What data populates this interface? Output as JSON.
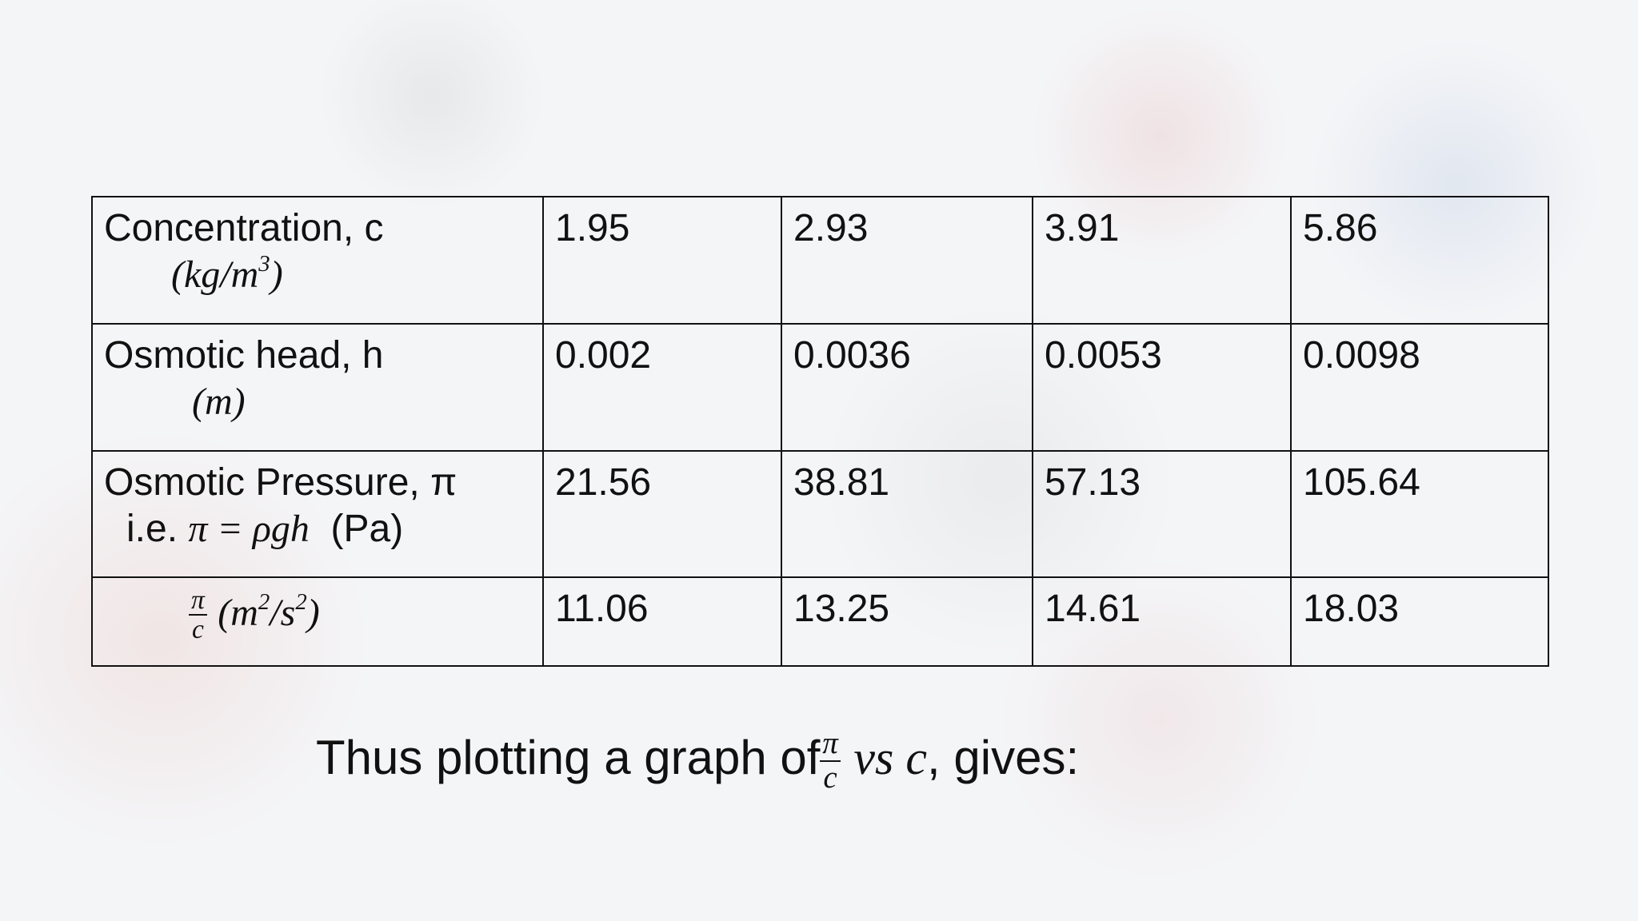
{
  "table": {
    "rows": [
      {
        "label": "Concentration, c",
        "unit": [
          "(kg/m",
          "3",
          ")"
        ],
        "values": [
          1.95,
          2.93,
          3.91,
          5.86
        ]
      },
      {
        "label": "Osmotic head, h",
        "unit": [
          "(m)"
        ],
        "values": [
          0.002,
          0.0036,
          0.0053,
          0.0098
        ]
      },
      {
        "label": "Osmotic Pressure, π",
        "unit": [
          "i.e.",
          "π = ρgh",
          "(Pa)"
        ],
        "values": [
          21.56,
          38.81,
          57.13,
          105.64
        ]
      },
      {
        "label": [
          "π",
          "c"
        ],
        "unit": [
          "(m",
          "2",
          "/s",
          "2",
          ")"
        ],
        "values": [
          11.06,
          13.25,
          14.61,
          18.03
        ]
      }
    ]
  },
  "footer": {
    "text": [
      "Thus plotting a graph of",
      "π",
      "c",
      "vs c",
      ", gives:"
    ]
  }
}
